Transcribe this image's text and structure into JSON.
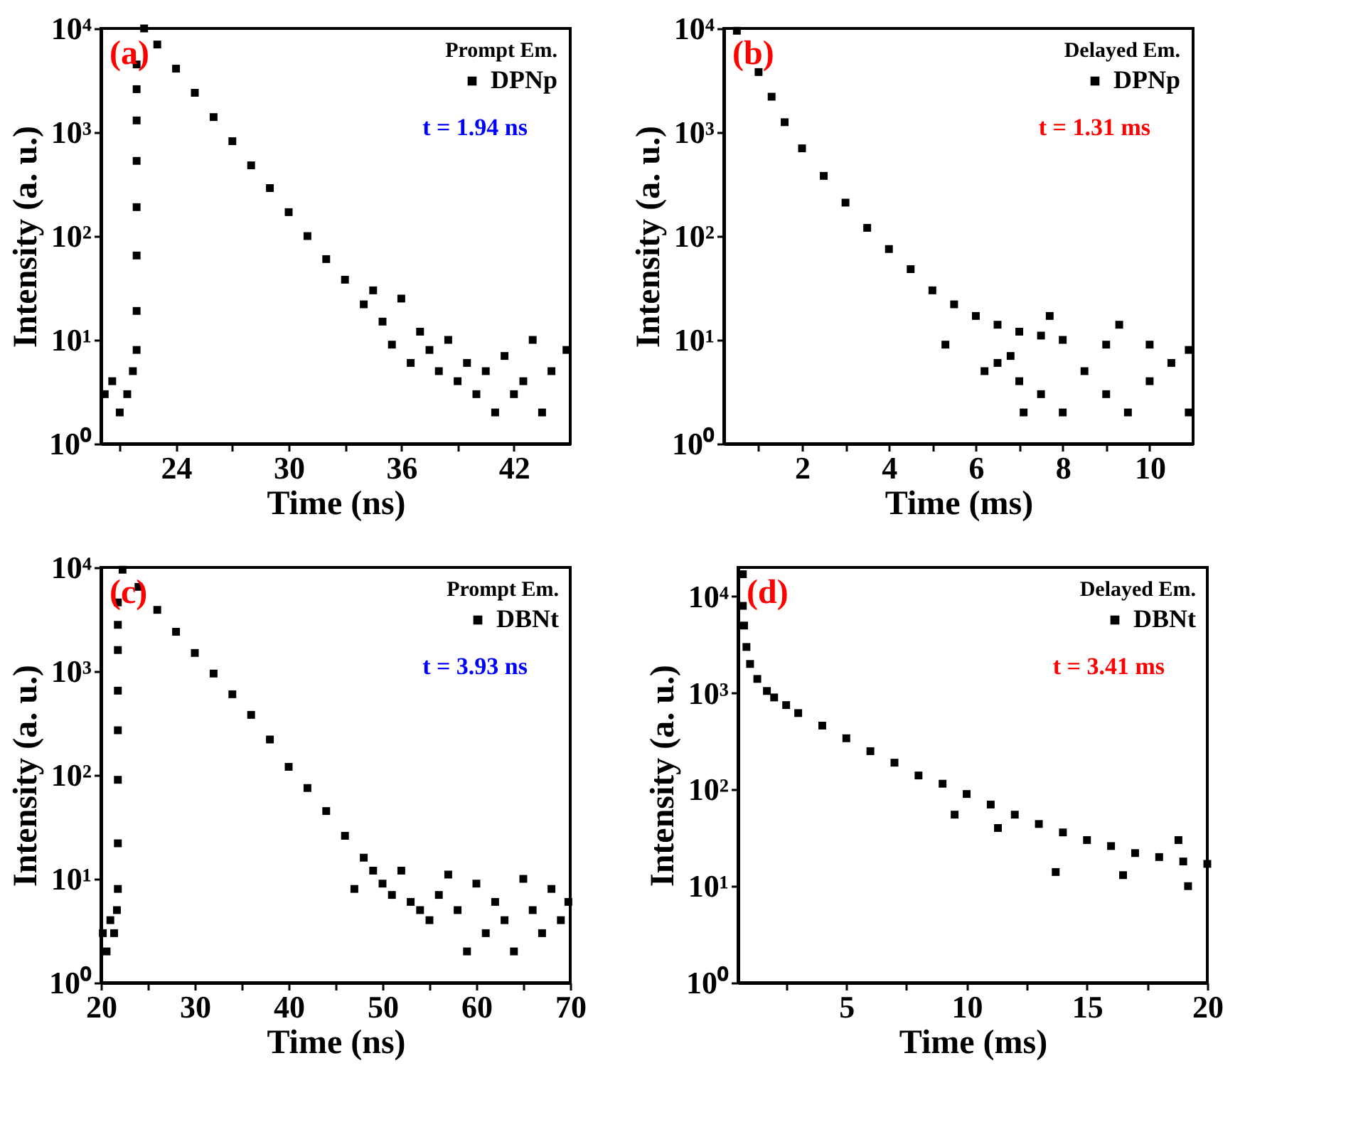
{
  "chart_data": [
    {
      "type": "scatter",
      "xlabel": "Time (ns)",
      "ylabel": "Intensity (a. u.)",
      "legend_title": "Prompt Em.",
      "legend": "top right",
      "marker": "square",
      "grid": false,
      "log": "y",
      "annotations": [
        "(a)",
        "t = 1.94 ns"
      ],
      "xlim": [
        20,
        45
      ],
      "xticks": [
        {
          "value": 21,
          "label": null
        },
        24,
        {
          "value": 27,
          "label": null
        },
        30,
        {
          "value": 33,
          "label": null
        },
        36,
        {
          "value": 39,
          "label": null
        },
        42
      ],
      "ylim": [
        1,
        10000
      ],
      "yticks": [
        {
          "value": 1,
          "label": "10⁰"
        },
        {
          "value": 10,
          "label": "10¹"
        },
        {
          "value": 100,
          "label": "10²"
        },
        {
          "value": 1000,
          "label": "10³"
        },
        {
          "value": 10000,
          "label": "10⁴"
        }
      ],
      "series": [
        {
          "name": "DPNp",
          "color": "#000000",
          "x": [
            20.2,
            20.6,
            21.0,
            21.4,
            21.7,
            21.9,
            21.9,
            21.9,
            21.9,
            21.9,
            21.9,
            21.9,
            21.9,
            22.3,
            23,
            24,
            25,
            26,
            27,
            28,
            29,
            30,
            31,
            32,
            33,
            34,
            34.5,
            35,
            35.5,
            36,
            36.5,
            37,
            37.5,
            38,
            38.5,
            39,
            39.5,
            40,
            40.5,
            41,
            41.5,
            42,
            42.5,
            43,
            43.5,
            44,
            44.8
          ],
          "values": [
            3,
            4,
            2,
            3,
            5,
            8,
            19,
            65,
            190,
            530,
            1300,
            2600,
            4500,
            10000,
            7000,
            4100,
            2400,
            1400,
            820,
            480,
            290,
            170,
            100,
            60,
            38,
            22,
            30,
            15,
            9,
            25,
            6,
            12,
            8,
            5,
            10,
            4,
            6,
            3,
            5,
            2,
            7,
            3,
            4,
            10,
            2,
            5,
            8
          ]
        }
      ]
    },
    {
      "type": "scatter",
      "xlabel": "Time (ms)",
      "ylabel": "Intensity (a. u.)",
      "legend_title": "Delayed Em.",
      "legend": "top right",
      "marker": "square",
      "grid": false,
      "log": "y",
      "annotations": [
        "(b)",
        "t = 1.31 ms"
      ],
      "xlim": [
        0.2,
        11
      ],
      "xticks": [
        {
          "value": 1,
          "label": null
        },
        2,
        {
          "value": 3,
          "label": null
        },
        4,
        {
          "value": 5,
          "label": null
        },
        6,
        {
          "value": 7,
          "label": null
        },
        8,
        {
          "value": 9,
          "label": null
        },
        10
      ],
      "ylim": [
        1,
        10000
      ],
      "yticks": [
        {
          "value": 1,
          "label": "10⁰"
        },
        {
          "value": 10,
          "label": "10¹"
        },
        {
          "value": 100,
          "label": "10²"
        },
        {
          "value": 1000,
          "label": "10³"
        },
        {
          "value": 10000,
          "label": "10⁴"
        }
      ],
      "series": [
        {
          "name": "DPNp",
          "color": "#000000",
          "x": [
            0.5,
            1.0,
            1.3,
            1.6,
            2.0,
            2.5,
            3.0,
            3.5,
            4.0,
            4.5,
            5.0,
            5.5,
            6.0,
            6.5,
            7.0,
            7.5,
            8.0,
            9.0,
            10.0,
            10.9,
            5.3,
            6.2,
            6.5,
            7.0,
            7.1,
            7.5,
            8.0,
            8.5,
            9.0,
            9.5,
            10.0,
            10.5,
            10.9,
            6.8,
            9.3,
            7.7
          ],
          "values": [
            9500,
            3800,
            2200,
            1250,
            700,
            380,
            210,
            120,
            75,
            48,
            30,
            22,
            17,
            14,
            12,
            11,
            10,
            9,
            9,
            8,
            9,
            5,
            6,
            4,
            2,
            3,
            2,
            5,
            3,
            2,
            4,
            6,
            2,
            7,
            14,
            17
          ]
        }
      ]
    },
    {
      "type": "scatter",
      "xlabel": "Time (ns)",
      "ylabel": "Intensity (a. u.)",
      "legend_title": "Prompt Em.",
      "legend": "top right",
      "marker": "square",
      "grid": false,
      "log": "y",
      "annotations": [
        "(c)",
        "t = 3.93 ns"
      ],
      "xlim": [
        20,
        70
      ],
      "xticks": [
        20,
        {
          "value": 25,
          "label": null
        },
        30,
        {
          "value": 35,
          "label": null
        },
        40,
        {
          "value": 45,
          "label": null
        },
        50,
        {
          "value": 55,
          "label": null
        },
        60,
        {
          "value": 65,
          "label": null
        },
        70
      ],
      "ylim": [
        1,
        10000
      ],
      "yticks": [
        {
          "value": 1,
          "label": "10⁰"
        },
        {
          "value": 10,
          "label": "10¹"
        },
        {
          "value": 100,
          "label": "10²"
        },
        {
          "value": 1000,
          "label": "10³"
        },
        {
          "value": 10000,
          "label": "10⁴"
        }
      ],
      "series": [
        {
          "name": "DBNt",
          "color": "#000000",
          "x": [
            20.2,
            20.6,
            21.0,
            21.4,
            21.7,
            21.8,
            21.8,
            21.8,
            21.8,
            21.8,
            21.8,
            21.8,
            21.8,
            22.3,
            24,
            26,
            28,
            30,
            32,
            34,
            36,
            38,
            40,
            42,
            44,
            46,
            47,
            48,
            49,
            50,
            51,
            52,
            53,
            54,
            55,
            56,
            57,
            58,
            59,
            60,
            61,
            62,
            63,
            64,
            65,
            66,
            67,
            68,
            69,
            69.8
          ],
          "values": [
            3,
            2,
            4,
            3,
            5,
            8,
            22,
            90,
            270,
            650,
            1600,
            2800,
            4600,
            9500,
            6500,
            3900,
            2400,
            1500,
            950,
            600,
            380,
            220,
            120,
            75,
            45,
            26,
            8,
            16,
            12,
            9,
            7,
            12,
            6,
            5,
            4,
            7,
            11,
            5,
            2,
            9,
            3,
            6,
            4,
            2,
            10,
            5,
            3,
            8,
            4,
            6
          ]
        }
      ]
    },
    {
      "type": "scatter",
      "xlabel": "Time (ms)",
      "ylabel": "Intensity (a. u.)",
      "legend_title": "Delayed Em.",
      "legend": "top right",
      "marker": "square",
      "grid": false,
      "log": "y",
      "annotations": [
        "(d)",
        "t = 3.41 ms"
      ],
      "xlim": [
        0.5,
        20
      ],
      "xticks": [
        {
          "value": 2.5,
          "label": null
        },
        5,
        {
          "value": 7.5,
          "label": null
        },
        10,
        {
          "value": 12.5,
          "label": null
        },
        15,
        {
          "value": 17.5,
          "label": null
        },
        20
      ],
      "ylim": [
        1,
        20000
      ],
      "yticks": [
        {
          "value": 1,
          "label": "10⁰"
        },
        {
          "value": 10,
          "label": "10¹"
        },
        {
          "value": 100,
          "label": "10²"
        },
        {
          "value": 1000,
          "label": "10³"
        },
        {
          "value": 10000,
          "label": "10⁴"
        }
      ],
      "series": [
        {
          "name": "DBNt",
          "color": "#000000",
          "x": [
            0.7,
            0.7,
            0.75,
            0.85,
            1.0,
            1.3,
            1.7,
            2,
            2.5,
            3,
            4,
            5,
            6,
            7,
            8,
            9,
            10,
            11,
            12,
            13,
            14,
            15,
            16,
            17,
            18,
            19,
            20,
            11.3,
            13.7,
            16.5,
            19.2,
            9.5,
            18.8
          ],
          "values": [
            17000,
            8000,
            5000,
            3000,
            2000,
            1400,
            1050,
            900,
            750,
            620,
            460,
            340,
            250,
            190,
            140,
            115,
            90,
            70,
            55,
            44,
            36,
            30,
            26,
            22,
            20,
            18,
            17,
            40,
            14,
            13,
            10,
            55,
            30
          ]
        }
      ]
    }
  ]
}
